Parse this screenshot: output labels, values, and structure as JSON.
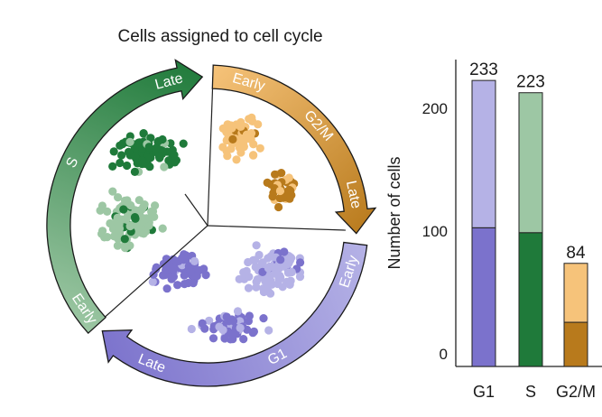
{
  "scatter": {
    "title": "Cells assigned to cell cycle",
    "phase_labels": {
      "s": "S",
      "g2m": "G2/M",
      "g1": "G1"
    },
    "arc_labels": {
      "s_late": "Late",
      "s_early": "Early",
      "g2m_early": "Early",
      "g2m_late": "Late",
      "g1_early": "Early",
      "g1_late": "Late"
    },
    "colors": {
      "g1_light": "#b5b2e6",
      "g1_dark": "#7b72cc",
      "s_light": "#9dc7a4",
      "s_dark": "#1f7a3a",
      "g2m_light": "#f6c37a",
      "g2m_dark": "#b87a1c"
    }
  },
  "chart_data": {
    "type": "bar",
    "categories": [
      "G1",
      "S",
      "G2/M"
    ],
    "values": [
      233,
      223,
      84
    ],
    "stacked_lower": [
      113,
      109,
      36
    ],
    "ylabel": "Number of cells",
    "yticks": [
      0,
      100,
      200
    ],
    "ylim": [
      0,
      250
    ],
    "colors": {
      "G1": [
        "#7b72cc",
        "#b5b2e6"
      ],
      "S": [
        "#1f7a3a",
        "#9dc7a4"
      ],
      "G2/M": [
        "#b87a1c",
        "#f6c37a"
      ]
    }
  }
}
